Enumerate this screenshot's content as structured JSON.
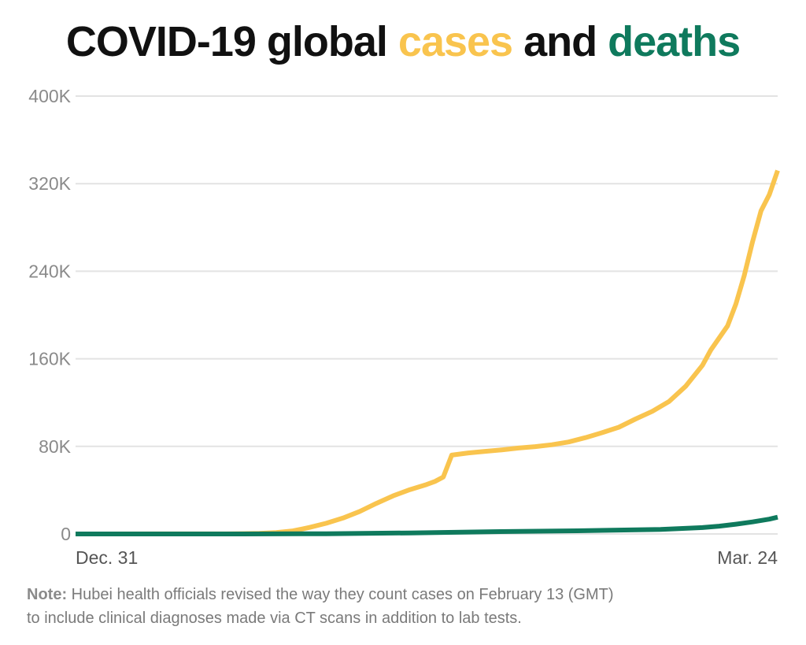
{
  "title": {
    "part1": "COVID-19 global ",
    "cases_word": "cases",
    "part2": " and ",
    "deaths_word": "deaths"
  },
  "colors": {
    "cases": "#f9c44e",
    "deaths": "#0f7a5d",
    "grid": "#e3e3e3",
    "tick_text": "#8a8a8a",
    "x_tick_text": "#555555"
  },
  "note": {
    "label": "Note:",
    "line1": " Hubei health officials revised the way they count cases on February 13 (GMT)",
    "line2": "to include clinical diagnoses made via CT scans in addition to lab tests."
  },
  "chart_data": {
    "type": "line",
    "ylim": [
      0,
      400000
    ],
    "y_ticks": [
      {
        "value": 0,
        "label": "0"
      },
      {
        "value": 80000,
        "label": "80K"
      },
      {
        "value": 160000,
        "label": "160K"
      },
      {
        "value": 240000,
        "label": "240K"
      },
      {
        "value": 320000,
        "label": "320K"
      },
      {
        "value": 400000,
        "label": "400K"
      }
    ],
    "x_range": [
      "2019-12-31",
      "2020-03-24"
    ],
    "x_ticks": [
      {
        "date": "2019-12-31",
        "label": "Dec. 31"
      },
      {
        "date": "2020-03-24",
        "label": "Mar. 24"
      }
    ],
    "grid": true,
    "series": [
      {
        "key": "cases",
        "points": [
          [
            "2019-12-31",
            27
          ],
          [
            "2020-01-10",
            41
          ],
          [
            "2020-01-18",
            60
          ],
          [
            "2020-01-20",
            282
          ],
          [
            "2020-01-22",
            580
          ],
          [
            "2020-01-24",
            1300
          ],
          [
            "2020-01-26",
            2800
          ],
          [
            "2020-01-28",
            6000
          ],
          [
            "2020-01-30",
            9800
          ],
          [
            "2020-02-01",
            14500
          ],
          [
            "2020-02-03",
            20600
          ],
          [
            "2020-02-05",
            28000
          ],
          [
            "2020-02-07",
            34800
          ],
          [
            "2020-02-09",
            40500
          ],
          [
            "2020-02-11",
            45200
          ],
          [
            "2020-02-12",
            48000
          ],
          [
            "2020-02-13",
            52000
          ],
          [
            "2020-02-14",
            72000
          ],
          [
            "2020-02-16",
            74000
          ],
          [
            "2020-02-18",
            75500
          ],
          [
            "2020-02-20",
            76800
          ],
          [
            "2020-02-22",
            78500
          ],
          [
            "2020-02-24",
            79800
          ],
          [
            "2020-02-26",
            81500
          ],
          [
            "2020-02-28",
            84000
          ],
          [
            "2020-03-01",
            88000
          ],
          [
            "2020-03-03",
            92500
          ],
          [
            "2020-03-05",
            97500
          ],
          [
            "2020-03-07",
            105000
          ],
          [
            "2020-03-09",
            112000
          ],
          [
            "2020-03-11",
            121000
          ],
          [
            "2020-03-13",
            135000
          ],
          [
            "2020-03-15",
            154000
          ],
          [
            "2020-03-16",
            168000
          ],
          [
            "2020-03-18",
            190000
          ],
          [
            "2020-03-19",
            210000
          ],
          [
            "2020-03-20",
            236000
          ],
          [
            "2020-03-21",
            267000
          ],
          [
            "2020-03-22",
            295000
          ],
          [
            "2020-03-23",
            310000
          ],
          [
            "2020-03-24",
            332000
          ]
        ]
      },
      {
        "key": "deaths",
        "points": [
          [
            "2019-12-31",
            0
          ],
          [
            "2020-01-20",
            6
          ],
          [
            "2020-01-30",
            213
          ],
          [
            "2020-02-09",
            908
          ],
          [
            "2020-02-19",
            2120
          ],
          [
            "2020-02-29",
            2900
          ],
          [
            "2020-03-10",
            4100
          ],
          [
            "2020-03-15",
            5800
          ],
          [
            "2020-03-17",
            7100
          ],
          [
            "2020-03-19",
            8900
          ],
          [
            "2020-03-21",
            11000
          ],
          [
            "2020-03-23",
            13500
          ],
          [
            "2020-03-24",
            15300
          ]
        ]
      }
    ]
  }
}
